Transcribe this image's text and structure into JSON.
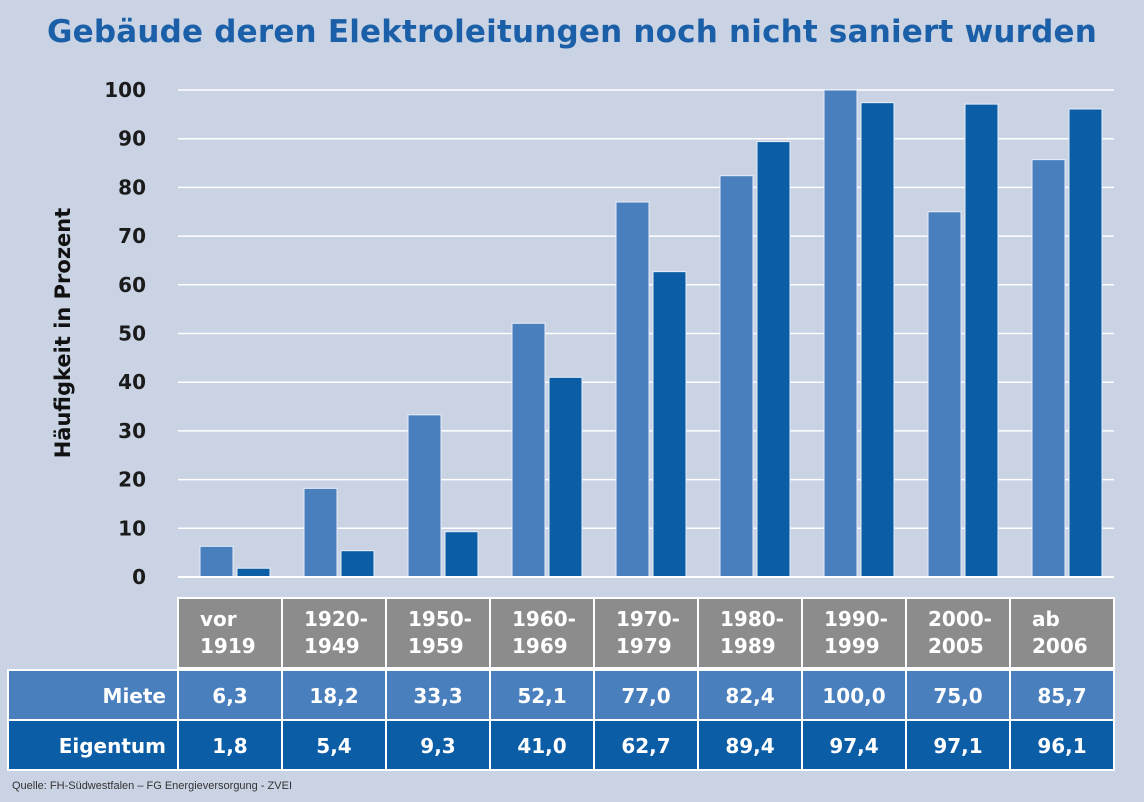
{
  "chart_data": {
    "type": "bar",
    "title": "Gebäude deren Elektroleitungen noch nicht saniert wurden",
    "ylabel": "Häufigkeit in Prozent",
    "ylim": [
      0,
      100
    ],
    "yticks": [
      0,
      10,
      20,
      30,
      40,
      50,
      60,
      70,
      80,
      90,
      100
    ],
    "categories": [
      [
        "vor",
        "1919"
      ],
      [
        "1920-",
        "1949"
      ],
      [
        "1950-",
        "1959"
      ],
      [
        "1960-",
        "1969"
      ],
      [
        "1970-",
        "1979"
      ],
      [
        "1980-",
        "1989"
      ],
      [
        "1990-",
        "1999"
      ],
      [
        "2000-",
        "2005"
      ],
      [
        "ab",
        "2006"
      ]
    ],
    "series": [
      {
        "name": "Miete",
        "values": [
          6.3,
          18.2,
          33.3,
          52.1,
          77.0,
          82.4,
          100.0,
          75.0,
          85.7
        ],
        "labels": [
          "6,3",
          "18,2",
          "33,3",
          "52,1",
          "77,0",
          "82,4",
          "100,0",
          "75,0",
          "85,7"
        ]
      },
      {
        "name": "Eigentum",
        "values": [
          1.8,
          5.4,
          9.3,
          41.0,
          62.7,
          89.4,
          97.4,
          97.1,
          96.1
        ],
        "labels": [
          "1,8",
          "5,4",
          "9,3",
          "41,0",
          "62,7",
          "89,4",
          "97,4",
          "97,1",
          "96,1"
        ]
      }
    ],
    "colors": {
      "miete": "#4a7fbe",
      "eigentum": "#0b5da6",
      "header": "#8c8c8c",
      "title": "#1a5fa8",
      "background": "#c9d3e3"
    },
    "grid": true,
    "legend": "table-below"
  },
  "source": "Quelle: FH-Südwestfalen – FG Energieversorgung - ZVEI"
}
